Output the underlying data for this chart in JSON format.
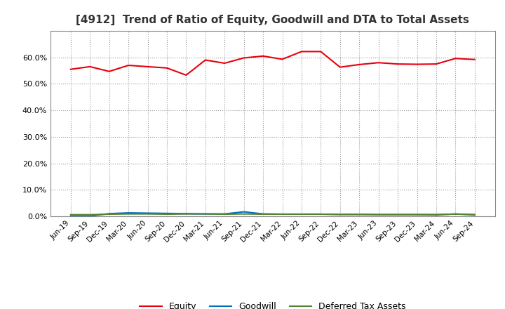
{
  "title": "[4912]  Trend of Ratio of Equity, Goodwill and DTA to Total Assets",
  "title_fontsize": 11,
  "labels": [
    "Jun-19",
    "Sep-19",
    "Dec-19",
    "Mar-20",
    "Jun-20",
    "Sep-20",
    "Dec-20",
    "Mar-21",
    "Jun-21",
    "Sep-21",
    "Dec-21",
    "Mar-22",
    "Jun-22",
    "Sep-22",
    "Dec-22",
    "Mar-23",
    "Jun-23",
    "Sep-23",
    "Dec-23",
    "Mar-24",
    "Jun-24",
    "Sep-24"
  ],
  "equity": [
    0.555,
    0.565,
    0.547,
    0.57,
    0.565,
    0.56,
    0.533,
    0.59,
    0.578,
    0.598,
    0.605,
    0.593,
    0.622,
    0.622,
    0.563,
    0.573,
    0.58,
    0.575,
    0.574,
    0.575,
    0.596,
    0.592
  ],
  "goodwill": [
    0.001,
    0.001,
    0.01,
    0.013,
    0.012,
    0.011,
    0.01,
    0.009,
    0.009,
    0.017,
    0.009,
    0.008,
    0.008,
    0.008,
    0.007,
    0.007,
    0.006,
    0.006,
    0.006,
    0.005,
    0.009,
    0.005
  ],
  "dta": [
    0.006,
    0.006,
    0.008,
    0.009,
    0.009,
    0.008,
    0.009,
    0.009,
    0.008,
    0.009,
    0.008,
    0.008,
    0.008,
    0.008,
    0.007,
    0.007,
    0.007,
    0.007,
    0.007,
    0.007,
    0.008,
    0.007
  ],
  "equity_color": "#e8000d",
  "goodwill_color": "#0070c0",
  "dta_color": "#548235",
  "legend_labels": [
    "Equity",
    "Goodwill",
    "Deferred Tax Assets"
  ],
  "ylim": [
    0.0,
    0.7
  ],
  "yticks": [
    0.0,
    0.1,
    0.2,
    0.3,
    0.4,
    0.5,
    0.6
  ],
  "bg_color": "#ffffff",
  "plot_bg_color": "#ffffff",
  "grid_color": "#999999",
  "line_width": 1.5
}
